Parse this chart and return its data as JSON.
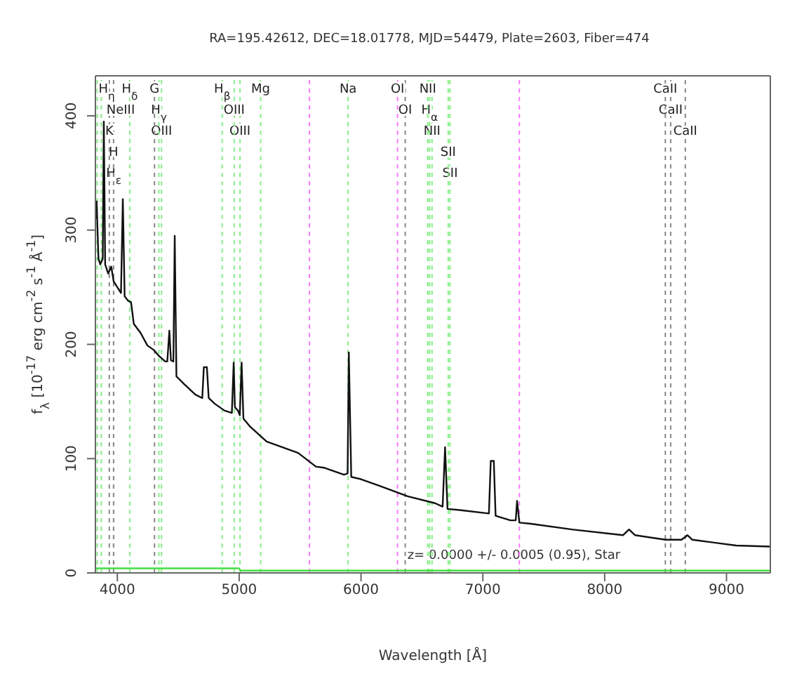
{
  "chart_data": {
    "type": "line",
    "title": "RA=195.42612, DEC=18.01778, MJD=54479, Plate=2603, Fiber=474",
    "xlabel": "Wavelength [Å]",
    "ylabel": "f$_{λ}$ [10$^{-17}$ erg cm$^{-2}$ s$^{-1}$ Å$^{-1}$]",
    "xlim": [
      3820,
      9360
    ],
    "ylim": [
      0,
      435
    ],
    "xticks": [
      4000,
      5000,
      6000,
      7000,
      8000,
      9000
    ],
    "yticks": [
      0,
      100,
      200,
      300,
      400
    ],
    "grid": false,
    "marker": "none",
    "series": [
      {
        "color": "#111111",
        "x": [
          3820,
          3830,
          3845,
          3860,
          3880,
          3889,
          3900,
          3925,
          3950,
          3970,
          4000,
          4030,
          4045,
          4060,
          4090,
          4112,
          4135,
          4191,
          4247,
          4300,
          4340,
          4393,
          4410,
          4427,
          4440,
          4460,
          4471,
          4485,
          4550,
          4641,
          4697,
          4710,
          4735,
          4750,
          4800,
          4880,
          4940,
          4955,
          4965,
          4990,
          5005,
          5020,
          5035,
          5090,
          5225,
          5484,
          5630,
          5700,
          5860,
          5890,
          5900,
          5920,
          6000,
          6158,
          6383,
          6608,
          6670,
          6690,
          6710,
          6810,
          7050,
          7065,
          7090,
          7105,
          7226,
          7270,
          7281,
          7300,
          7394,
          7732,
          8150,
          8200,
          8250,
          8500,
          8631,
          8680,
          8720,
          9080,
          9360
        ],
        "values": [
          310,
          325,
          275,
          270,
          275,
          395,
          270,
          262,
          268,
          255,
          250,
          245,
          327,
          242,
          238,
          237,
          218,
          210,
          199,
          195,
          190,
          185,
          185,
          212,
          186,
          185,
          295,
          172,
          165,
          156,
          153,
          180,
          180,
          153,
          148,
          142,
          140,
          184,
          145,
          142,
          138,
          184,
          135,
          128,
          115,
          105,
          93,
          92,
          86,
          87,
          193,
          84,
          82,
          76,
          67,
          61,
          58,
          110,
          56,
          55,
          52,
          98,
          98,
          50,
          46,
          46,
          63,
          44,
          43,
          38,
          33,
          38,
          33,
          29,
          29,
          33,
          29,
          24,
          23
        ]
      },
      {
        "color": "#44dd44",
        "x": [
          3820,
          5000,
          5010,
          9360
        ],
        "values": [
          4,
          4,
          2,
          2
        ]
      }
    ],
    "ref_lines": [
      {
        "axis": "x",
        "value": 3835,
        "label": "H$_{η}$",
        "color": "#88ee88",
        "line_style": "dashed"
      },
      {
        "axis": "x",
        "value": 3869,
        "label": "NeIII",
        "color": "#88ee88",
        "line_style": "dashed"
      },
      {
        "axis": "x",
        "value": 3934,
        "label": "K",
        "color": "#888888",
        "line_style": "dashed"
      },
      {
        "axis": "x",
        "value": 3969,
        "label": "H",
        "color": "#888888",
        "line_style": "dashed"
      },
      {
        "axis": "x",
        "value": 3970,
        "label": "H$_{ε}$",
        "color": "#88ee88",
        "line_style": "dashed"
      },
      {
        "axis": "x",
        "value": 4102,
        "label": "H$_{δ}$",
        "color": "#88ee88",
        "line_style": "dashed"
      },
      {
        "axis": "x",
        "value": 4305,
        "label": "G",
        "color": "#888888",
        "line_style": "dashed"
      },
      {
        "axis": "x",
        "value": 4341,
        "label": "H$_{γ}$",
        "color": "#88ee88",
        "line_style": "dashed"
      },
      {
        "axis": "x",
        "value": 4363,
        "label": "OIII",
        "color": "#88ee88",
        "line_style": "dashed"
      },
      {
        "axis": "x",
        "value": 4861,
        "label": "H$_{β}$",
        "color": "#88ee88",
        "line_style": "dashed"
      },
      {
        "axis": "x",
        "value": 4959,
        "label": "OIII",
        "color": "#88ee88",
        "line_style": "dashed"
      },
      {
        "axis": "x",
        "value": 5007,
        "label": "OIII",
        "color": "#88ee88",
        "line_style": "dashed"
      },
      {
        "axis": "x",
        "value": 5176,
        "label": "Mg",
        "color": "#88ee88",
        "line_style": "dashed"
      },
      {
        "axis": "x",
        "value": 5577,
        "label": null,
        "color": "#ff77ff",
        "line_style": "dashed"
      },
      {
        "axis": "x",
        "value": 5894,
        "label": "Na",
        "color": "#88ee88",
        "line_style": "dashed"
      },
      {
        "axis": "x",
        "value": 6300,
        "label": "OI",
        "color": "#ff77ff",
        "line_style": "dashed"
      },
      {
        "axis": "x",
        "value": 6363,
        "label": "OI",
        "color": "#888888",
        "line_style": "dashed"
      },
      {
        "axis": "x",
        "value": 6548,
        "label": "NII",
        "color": "#88ee88",
        "line_style": "dashed"
      },
      {
        "axis": "x",
        "value": 6563,
        "label": "H$_{α}$",
        "color": "#88ee88",
        "line_style": "dashed"
      },
      {
        "axis": "x",
        "value": 6583,
        "label": "NII",
        "color": "#88ee88",
        "line_style": "dashed"
      },
      {
        "axis": "x",
        "value": 6716,
        "label": "SII",
        "color": "#88ee88",
        "line_style": "dashed"
      },
      {
        "axis": "x",
        "value": 6731,
        "label": "SII",
        "color": "#88ee88",
        "line_style": "dashed"
      },
      {
        "axis": "x",
        "value": 7300,
        "label": null,
        "color": "#ff77ff",
        "line_style": "dashed"
      },
      {
        "axis": "x",
        "value": 8498,
        "label": "CaII",
        "color": "#888888",
        "line_style": "dashed"
      },
      {
        "axis": "x",
        "value": 8542,
        "label": "CaII",
        "color": "#888888",
        "line_style": "dashed"
      },
      {
        "axis": "x",
        "value": 8662,
        "label": "CaII",
        "color": "#888888",
        "line_style": "dashed"
      }
    ],
    "annotations": [
      "z= 0.0000 +/- 0.0005 (0.95), Star"
    ]
  }
}
